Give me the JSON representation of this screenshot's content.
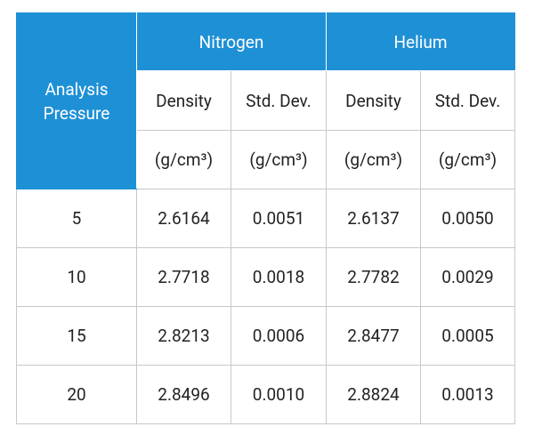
{
  "table": {
    "row_header": "Analysis Pressure",
    "groups": [
      "Nitrogen",
      "Helium"
    ],
    "columns": [
      "Density",
      "Std. Dev.",
      "Density",
      "Std. Dev."
    ],
    "units": [
      "(g/cm³)",
      "(g/cm³)",
      "(g/cm³)",
      "(g/cm³)"
    ],
    "rows": [
      [
        "5",
        "2.6164",
        "0.0051",
        "2.6137",
        "0.0050"
      ],
      [
        "10",
        "2.7718",
        "0.0018",
        "2.7782",
        "0.0029"
      ],
      [
        "15",
        "2.8213",
        "0.0006",
        "2.8477",
        "0.0005"
      ],
      [
        "20",
        "2.8496",
        "0.0010",
        "2.8824",
        "0.0013"
      ]
    ]
  }
}
